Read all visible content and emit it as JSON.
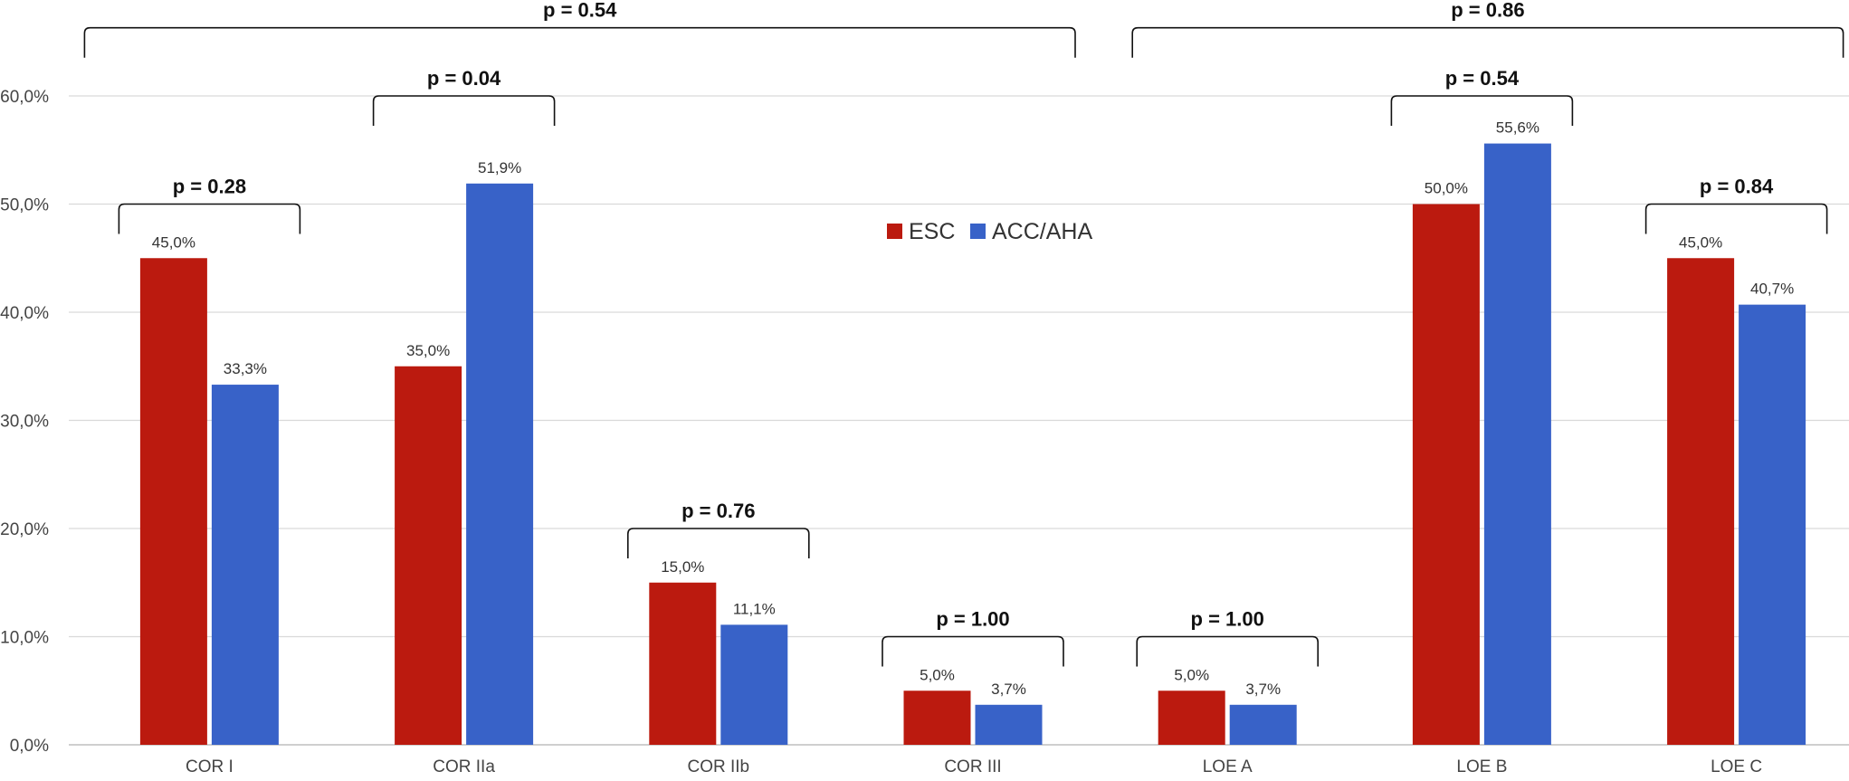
{
  "chart_data": {
    "type": "bar",
    "title": "",
    "xlabel": "",
    "ylabel": "",
    "ylim": [
      0,
      60
    ],
    "yticks": [
      0,
      10,
      20,
      30,
      40,
      50,
      60
    ],
    "ytick_labels": [
      "0,0%",
      "10,0%",
      "20,0%",
      "30,0%",
      "40,0%",
      "50,0%",
      "60,0%"
    ],
    "grid": true,
    "categories": [
      "COR I",
      "COR IIa",
      "COR IIb",
      "COR III",
      "LOE A",
      "LOE B",
      "LOE C"
    ],
    "series": [
      {
        "name": "ESC",
        "color": "#BB1A0F",
        "values": [
          45.0,
          35.0,
          15.0,
          5.0,
          5.0,
          50.0,
          45.0
        ],
        "labels": [
          "45,0%",
          "35,0%",
          "15,0%",
          "5,0%",
          "5,0%",
          "50,0%",
          "45,0%"
        ]
      },
      {
        "name": "ACC/AHA",
        "color": "#3862C8",
        "values": [
          33.3,
          51.9,
          11.1,
          3.7,
          3.7,
          55.6,
          40.7
        ],
        "labels": [
          "33,3%",
          "51,9%",
          "11,1%",
          "3,7%",
          "3,7%",
          "55,6%",
          "40,7%"
        ]
      }
    ],
    "legend": {
      "position": "center-top",
      "items": [
        "ESC",
        "ACC/AHA"
      ]
    },
    "annotations": [
      {
        "text": "p = 0.28",
        "from_category": 0,
        "to_category": 0,
        "level": 50
      },
      {
        "text": "p = 0.04",
        "from_category": 1,
        "to_category": 1,
        "level": 60
      },
      {
        "text": "p = 0.76",
        "from_category": 2,
        "to_category": 2,
        "level": 20
      },
      {
        "text": "p = 1.00",
        "from_category": 3,
        "to_category": 3,
        "level": 10
      },
      {
        "text": "p = 1.00",
        "from_category": 4,
        "to_category": 4,
        "level": 10
      },
      {
        "text": "p = 0.54",
        "from_category": 5,
        "to_category": 5,
        "level": 60
      },
      {
        "text": "p = 0.84",
        "from_category": 6,
        "to_category": 6,
        "level": 50
      },
      {
        "text": "p = 0.54",
        "from_category": 0,
        "to_category": 3,
        "level": 66.3
      },
      {
        "text": "p = 0.86",
        "from_category": 4,
        "to_category": 6,
        "level": 66.3
      }
    ]
  }
}
